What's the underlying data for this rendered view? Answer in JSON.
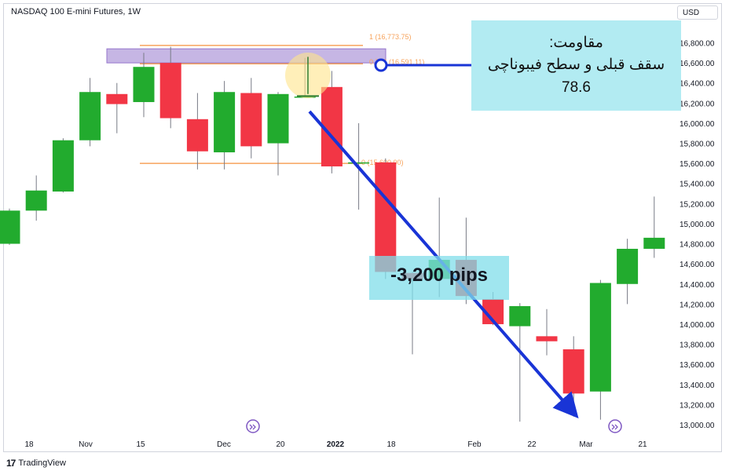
{
  "header": {
    "title": "NASDAQ 100 E-mini Futures, 1W",
    "currency": "USD"
  },
  "brand": {
    "logo_glyph": "17",
    "name": "TradingView"
  },
  "annotation": {
    "line1": "مقاومت:",
    "line2": "سقف قبلی و سطح فیبوناچی",
    "line3": "78.6"
  },
  "drop_label": "-3,200 pips",
  "fib_labels": {
    "top": "1 (16,773.75)",
    "zero": "0 (15,600.00)",
    "mid": "0.786 (16,591.11)"
  },
  "colors": {
    "up": "#22ab2e",
    "down": "#f23645",
    "fib": "#f7a35c",
    "zone": "#b39ddb",
    "arrow": "#1934d6",
    "annotation_bg": "#b2ebf2"
  },
  "chart_data": {
    "type": "candlestick",
    "title": "NASDAQ 100 E-mini Futures, 1W",
    "y_ticks": [
      "16,800.00",
      "16,600.00",
      "16,400.00",
      "16,200.00",
      "16,000.00",
      "15,800.00",
      "15,600.00",
      "15,400.00",
      "15,200.00",
      "15,000.00",
      "14,800.00",
      "14,600.00",
      "14,400.00",
      "14,200.00",
      "14,000.00",
      "13,800.00",
      "13,600.00",
      "13,400.00",
      "13,200.00",
      "13,000.00"
    ],
    "x_ticks": [
      "18",
      "Nov",
      "15",
      "Dec",
      "20",
      "2022",
      "18",
      "Feb",
      "22",
      "Mar",
      "21"
    ],
    "ylim": [
      12950,
      17100
    ],
    "candles": [
      {
        "o": 14800,
        "h": 15150,
        "l": 14790,
        "c": 15130
      },
      {
        "o": 15130,
        "h": 15480,
        "l": 15030,
        "c": 15330
      },
      {
        "o": 15320,
        "h": 15850,
        "l": 15310,
        "c": 15830
      },
      {
        "o": 15830,
        "h": 16450,
        "l": 15770,
        "c": 16310
      },
      {
        "o": 16290,
        "h": 16400,
        "l": 15900,
        "c": 16190
      },
      {
        "o": 16210,
        "h": 16700,
        "l": 16060,
        "c": 16560
      },
      {
        "o": 16600,
        "h": 16760,
        "l": 15950,
        "c": 16050
      },
      {
        "o": 16040,
        "h": 16300,
        "l": 15540,
        "c": 15720
      },
      {
        "o": 15710,
        "h": 16420,
        "l": 15540,
        "c": 16310
      },
      {
        "o": 16300,
        "h": 16450,
        "l": 15650,
        "c": 15770
      },
      {
        "o": 15800,
        "h": 16310,
        "l": 15480,
        "c": 16290
      },
      {
        "o": 16260,
        "h": 16650,
        "l": 16260,
        "c": 16265
      },
      {
        "o": 16360,
        "h": 16520,
        "l": 15500,
        "c": 15570
      },
      {
        "o": 15600,
        "h": 16000,
        "l": 15140,
        "c": 15610
      },
      {
        "o": 15610,
        "h": 15650,
        "l": 14450,
        "c": 14520
      },
      {
        "o": 14510,
        "h": 14520,
        "l": 13700,
        "c": 14450
      },
      {
        "o": 14450,
        "h": 15260,
        "l": 14270,
        "c": 14640
      },
      {
        "o": 14640,
        "h": 15060,
        "l": 14200,
        "c": 14280
      },
      {
        "o": 14250,
        "h": 14320,
        "l": 13990,
        "c": 14000
      },
      {
        "o": 13980,
        "h": 14210,
        "l": 13030,
        "c": 14180
      },
      {
        "o": 13880,
        "h": 14150,
        "l": 13690,
        "c": 13830
      },
      {
        "o": 13750,
        "h": 13880,
        "l": 13080,
        "c": 13310
      },
      {
        "o": 13330,
        "h": 14440,
        "l": 13050,
        "c": 14410
      },
      {
        "o": 14400,
        "h": 14850,
        "l": 14200,
        "c": 14750
      },
      {
        "o": 14750,
        "h": 15270,
        "l": 14660,
        "c": 14860
      }
    ],
    "fib_levels": [
      {
        "label": "1 (16,773.75)",
        "value": 16773.75
      },
      {
        "label": "0.786 (16,591.11)",
        "value": 16591.11
      },
      {
        "label": "0 (15,600.00)",
        "value": 15600.0
      }
    ],
    "resistance_zone": [
      16600,
      16740
    ],
    "drop_pips": -3200
  }
}
